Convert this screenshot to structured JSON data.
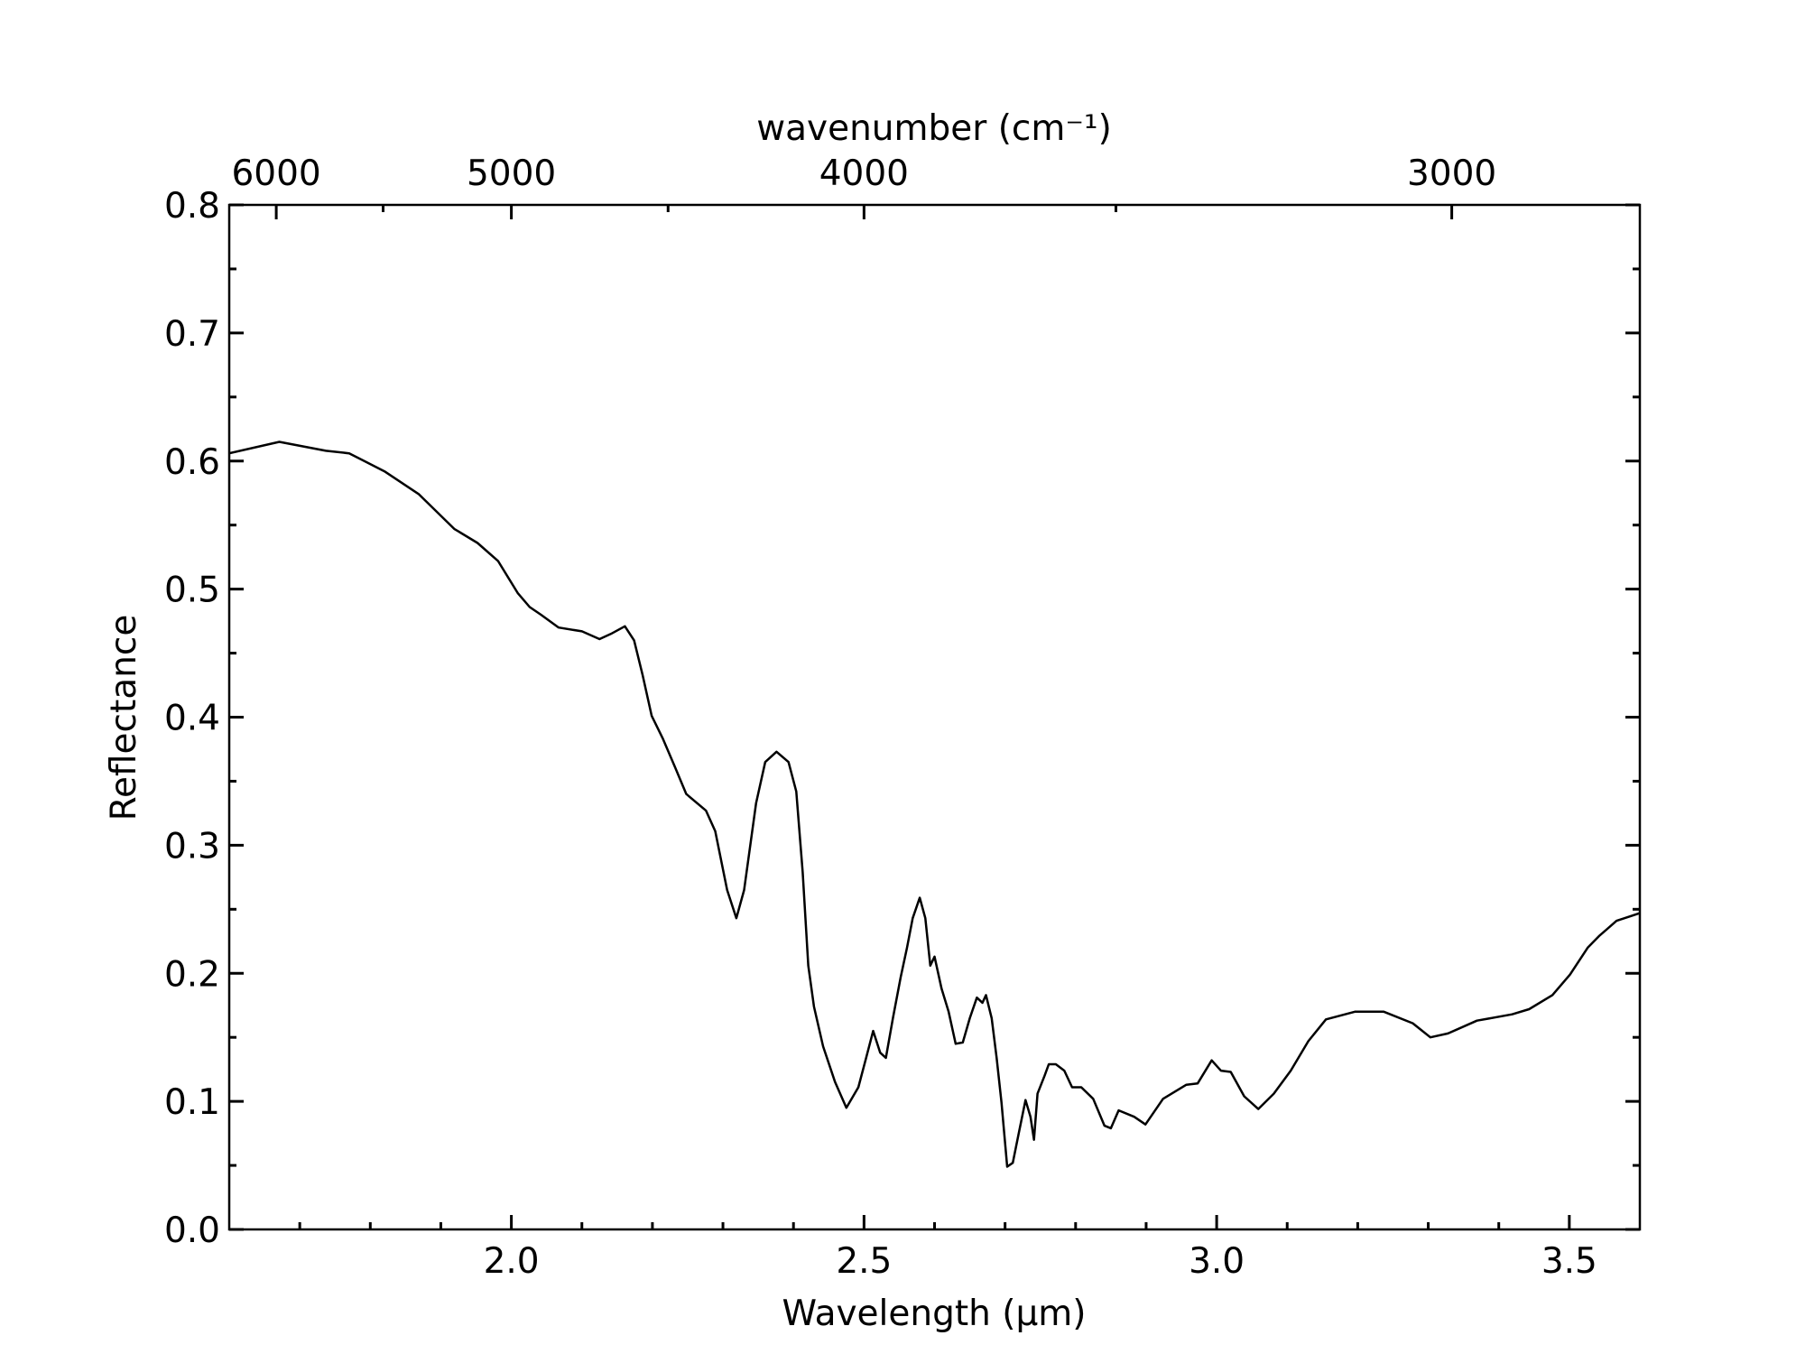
{
  "chart_data": {
    "type": "line",
    "xlabel": "Wavelength (μm)",
    "ylabel": "Reflectance",
    "x2label": "wavenumber (cm⁻¹)",
    "color": "#000000",
    "x": [
      1.6,
      1.671,
      1.737,
      1.77,
      1.82,
      1.869,
      1.919,
      1.952,
      1.981,
      2.009,
      2.026,
      2.042,
      2.067,
      2.1,
      2.125,
      2.141,
      2.161,
      2.174,
      2.186,
      2.199,
      2.215,
      2.232,
      2.248,
      2.276,
      2.289,
      2.306,
      2.319,
      2.33,
      2.347,
      2.36,
      2.376,
      2.393,
      2.404,
      2.413,
      2.421,
      2.429,
      2.442,
      2.459,
      2.475,
      2.492,
      2.503,
      2.513,
      2.523,
      2.531,
      2.541,
      2.552,
      2.561,
      2.569,
      2.579,
      2.587,
      2.594,
      2.6,
      2.61,
      2.62,
      2.63,
      2.64,
      2.65,
      2.66,
      2.668,
      2.673,
      2.681,
      2.688,
      2.695,
      2.703,
      2.711,
      2.719,
      2.729,
      2.736,
      2.741,
      2.746,
      2.756,
      2.762,
      2.772,
      2.784,
      2.795,
      2.808,
      2.825,
      2.841,
      2.85,
      2.861,
      2.883,
      2.899,
      2.924,
      2.957,
      2.973,
      2.993,
      3.006,
      3.02,
      3.039,
      3.059,
      3.081,
      3.105,
      3.13,
      3.155,
      3.196,
      3.237,
      3.278,
      3.303,
      3.328,
      3.369,
      3.419,
      3.443,
      3.476,
      3.501,
      3.526,
      3.542,
      3.567,
      3.6
    ],
    "values": [
      0.606,
      0.615,
      0.608,
      0.606,
      0.592,
      0.574,
      0.547,
      0.536,
      0.522,
      0.497,
      0.486,
      0.48,
      0.47,
      0.467,
      0.461,
      0.465,
      0.471,
      0.46,
      0.433,
      0.401,
      0.383,
      0.361,
      0.34,
      0.327,
      0.311,
      0.265,
      0.243,
      0.265,
      0.333,
      0.365,
      0.373,
      0.365,
      0.342,
      0.279,
      0.206,
      0.174,
      0.143,
      0.115,
      0.095,
      0.111,
      0.134,
      0.155,
      0.138,
      0.134,
      0.165,
      0.197,
      0.22,
      0.243,
      0.259,
      0.243,
      0.206,
      0.213,
      0.188,
      0.17,
      0.145,
      0.146,
      0.165,
      0.181,
      0.177,
      0.183,
      0.165,
      0.134,
      0.099,
      0.049,
      0.052,
      0.074,
      0.101,
      0.088,
      0.07,
      0.106,
      0.12,
      0.129,
      0.129,
      0.124,
      0.111,
      0.111,
      0.102,
      0.081,
      0.079,
      0.093,
      0.088,
      0.082,
      0.102,
      0.113,
      0.114,
      0.132,
      0.124,
      0.123,
      0.104,
      0.094,
      0.106,
      0.124,
      0.147,
      0.164,
      0.17,
      0.17,
      0.161,
      0.15,
      0.153,
      0.163,
      0.168,
      0.172,
      0.183,
      0.199,
      0.22,
      0.229,
      0.241,
      0.247
    ],
    "xlim": [
      1.6,
      3.6
    ],
    "xticks": [
      {
        "value": 2.0,
        "label": "2.0"
      },
      2.5,
      {
        "value": 3.0,
        "label": "3.0"
      },
      3.5
    ],
    "xminorticks": [
      1.7,
      1.8,
      1.9,
      2.1,
      2.2,
      2.3,
      2.4,
      2.6,
      2.7,
      2.8,
      2.9,
      3.1,
      3.2,
      3.3,
      3.4
    ],
    "ylim": [
      0,
      0.8
    ],
    "yticks": [
      {
        "value": 0,
        "label": "0.0"
      },
      0.1,
      0.2,
      0.3,
      0.4,
      0.5,
      0.6,
      0.7,
      0.8
    ],
    "yminorticks": [
      0.05,
      0.15,
      0.25,
      0.35,
      0.45,
      0.55,
      0.65,
      0.75
    ],
    "x2ticks": [
      6000,
      5000,
      4000,
      3000
    ],
    "x2minorticks": [
      5500,
      4500,
      3500
    ]
  }
}
